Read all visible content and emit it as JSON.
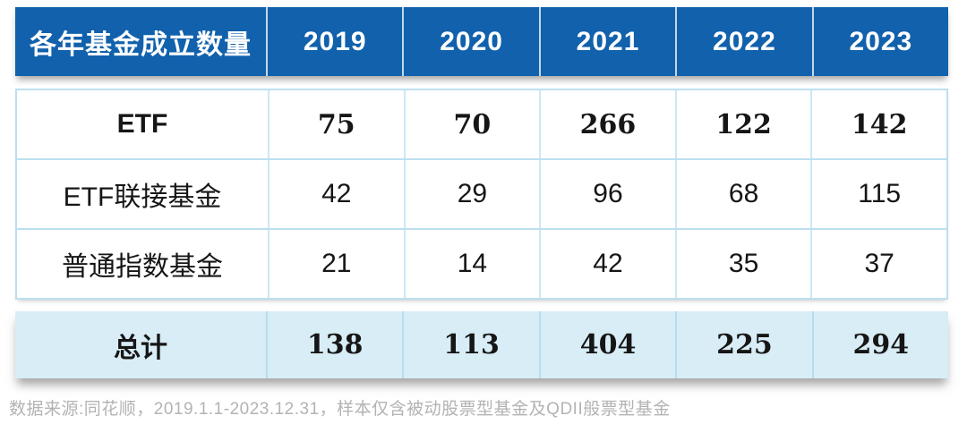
{
  "chart_data": {
    "type": "table",
    "title": "各年基金成立数量",
    "categories": [
      "2019",
      "2020",
      "2021",
      "2022",
      "2023"
    ],
    "series": [
      {
        "name": "ETF",
        "values": [
          75,
          70,
          266,
          122,
          142
        ]
      },
      {
        "name": "ETF联接基金",
        "values": [
          42,
          29,
          96,
          68,
          115
        ]
      },
      {
        "name": "普通指数基金",
        "values": [
          21,
          14,
          42,
          35,
          37
        ]
      },
      {
        "name": "总计",
        "values": [
          138,
          113,
          404,
          225,
          294
        ],
        "role": "total"
      }
    ],
    "layout": {
      "header_position": "top",
      "total_row": "bottom",
      "grid": "on"
    }
  },
  "footer": {
    "source_note": "数据来源:同花顺，2019.1.1-2023.12.31，样本仅含被动股票型基金及QDII般票型基金"
  },
  "colors": {
    "header_bg": "#1161ac",
    "header_text": "#ffffff",
    "body_bg": "#ffffff",
    "body_border": "#bcdff0",
    "total_bg": "#d8edf6",
    "text": "#161616",
    "footer_text": "#b3b3b3"
  }
}
